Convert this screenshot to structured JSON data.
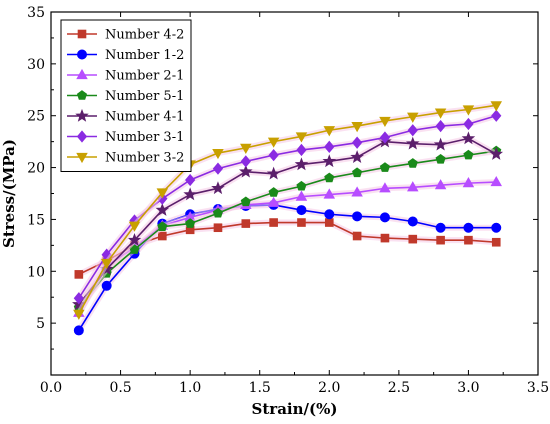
{
  "chart_data": {
    "type": "line",
    "title": "",
    "xlabel": "Strain/(%)",
    "ylabel": "Stress/(MPa)",
    "xlim": [
      0.0,
      3.5
    ],
    "ylim": [
      0,
      35
    ],
    "x_ticks": [
      "0.0",
      "0.5",
      "1.0",
      "1.5",
      "2.0",
      "2.5",
      "3.0",
      "3.5"
    ],
    "y_ticks": [
      "5",
      "10",
      "15",
      "20",
      "25",
      "30",
      "35"
    ],
    "grid": false,
    "legend_position": "top-left",
    "x": [
      0.2,
      0.4,
      0.6,
      0.8,
      1.0,
      1.2,
      1.4,
      1.6,
      1.8,
      2.0,
      2.2,
      2.4,
      2.6,
      2.8,
      3.0,
      3.2
    ],
    "series": [
      {
        "name": "Number 4-2",
        "color": "#c0392b",
        "marker": "square",
        "values": [
          9.7,
          11.0,
          12.5,
          13.4,
          14.0,
          14.2,
          14.6,
          14.7,
          14.7,
          14.7,
          13.4,
          13.2,
          13.1,
          13.0,
          13.0,
          12.8
        ]
      },
      {
        "name": "Number 1-2",
        "color": "#0000ff",
        "marker": "circle",
        "values": [
          4.3,
          8.6,
          11.7,
          14.6,
          15.5,
          16.0,
          16.3,
          16.4,
          15.9,
          15.5,
          15.3,
          15.2,
          14.8,
          14.2,
          14.2,
          14.2
        ]
      },
      {
        "name": "Number 2-1",
        "color": "#b74dff",
        "marker": "triangle-up",
        "values": [
          6.0,
          10.5,
          12.3,
          14.4,
          15.2,
          15.9,
          16.4,
          16.6,
          17.2,
          17.4,
          17.6,
          18.0,
          18.1,
          18.3,
          18.5,
          18.6
        ]
      },
      {
        "name": "Number 5-1",
        "color": "#1a8a1a",
        "marker": "pentagon",
        "values": [
          6.5,
          9.8,
          12.1,
          14.3,
          14.6,
          15.6,
          16.7,
          17.6,
          18.2,
          19.0,
          19.5,
          20.0,
          20.4,
          20.8,
          21.2,
          21.6
        ]
      },
      {
        "name": "Number 4-1",
        "color": "#5b1f6b",
        "marker": "star",
        "values": [
          6.8,
          10.2,
          13.0,
          15.9,
          17.4,
          18.0,
          19.6,
          19.4,
          20.3,
          20.6,
          21.0,
          22.5,
          22.3,
          22.2,
          22.8,
          21.3
        ]
      },
      {
        "name": "Number 3-1",
        "color": "#8a2be2",
        "marker": "diamond",
        "values": [
          7.4,
          11.6,
          14.9,
          17.0,
          18.8,
          19.9,
          20.6,
          21.2,
          21.7,
          22.0,
          22.4,
          22.9,
          23.6,
          24.0,
          24.2,
          25.0
        ]
      },
      {
        "name": "Number 3-2",
        "color": "#c8a000",
        "marker": "triangle-down",
        "values": [
          5.9,
          10.8,
          14.4,
          17.6,
          20.3,
          21.4,
          21.9,
          22.5,
          23.0,
          23.6,
          24.0,
          24.5,
          24.9,
          25.3,
          25.6,
          26.0
        ]
      }
    ]
  }
}
